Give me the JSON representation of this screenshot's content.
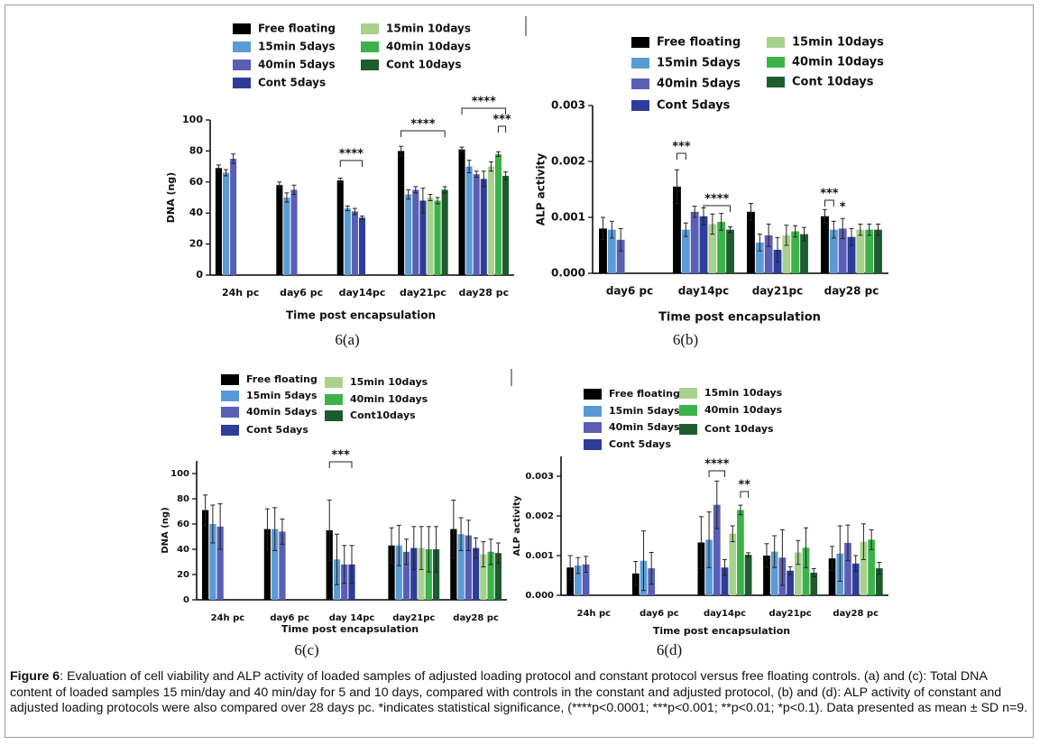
{
  "chart_data": [
    {
      "type": "bar",
      "label": "6(a)",
      "ylabel": "DNA (ng)",
      "xlabel": "Time post encapsulation",
      "categories": [
        "24h pc",
        "day6 pc",
        "day14pc",
        "day21pc",
        "day28 pc"
      ],
      "ylim": [
        0,
        100
      ],
      "yticks": [
        0,
        20,
        40,
        60,
        80,
        100
      ],
      "annotations": [
        "****",
        "****",
        "****",
        "***"
      ],
      "series": [
        {
          "name": "Free floating",
          "color": "#000000",
          "values": [
            69,
            58,
            61,
            80,
            81
          ],
          "errors": [
            2,
            2,
            1.5,
            3,
            1.5
          ]
        },
        {
          "name": "15min 5days",
          "color": "#5b9bd5",
          "values": [
            66,
            50,
            43,
            52,
            70
          ],
          "errors": [
            2,
            3,
            1.5,
            3,
            4
          ]
        },
        {
          "name": "40min 5days",
          "color": "#5a5fb5",
          "values": [
            75,
            55,
            41,
            55,
            65
          ],
          "errors": [
            3,
            3,
            2,
            2,
            2
          ]
        },
        {
          "name": "Cont 5days",
          "color": "#2e3d9a",
          "values": [
            null,
            null,
            37,
            48,
            62
          ],
          "errors": [
            null,
            null,
            1,
            8,
            5
          ]
        },
        {
          "name": "15min 10days",
          "color": "#a9d18e",
          "values": [
            null,
            null,
            null,
            50,
            70
          ],
          "errors": [
            null,
            null,
            null,
            2,
            3
          ]
        },
        {
          "name": "40min 10days",
          "color": "#3cb34a",
          "values": [
            null,
            null,
            null,
            48,
            78
          ],
          "errors": [
            null,
            null,
            null,
            2,
            1.5
          ]
        },
        {
          "name": "Cont 10days",
          "color": "#1e5c30",
          "values": [
            null,
            null,
            null,
            55,
            64
          ],
          "errors": [
            null,
            null,
            null,
            2,
            2.5
          ]
        }
      ]
    },
    {
      "type": "bar",
      "label": "6(b)",
      "ylabel": "ALP activity",
      "xlabel": "Time post encapsulation",
      "categories": [
        "day6 pc",
        "day14pc",
        "day21pc",
        "day28 pc"
      ],
      "ylim": [
        0,
        0.003
      ],
      "yticks": [
        {
          "value": 0,
          "label": "0.000"
        },
        {
          "value": 0.001,
          "label": "0.001"
        },
        {
          "value": 0.002,
          "label": "0.002"
        },
        {
          "value": 0.003,
          "label": "0.003"
        }
      ],
      "annotations": [
        "***",
        "****",
        "***",
        "*"
      ],
      "series": [
        {
          "name": "Free floating",
          "color": "#000000",
          "values": [
            0.0008,
            0.00155,
            0.0011,
            0.00102
          ],
          "errors": [
            0.0002,
            0.0003,
            0.00015,
            0.00012
          ]
        },
        {
          "name": "15min 5days",
          "color": "#5b9bd5",
          "values": [
            0.00078,
            0.00078,
            0.00055,
            0.00078
          ],
          "errors": [
            0.00015,
            0.00012,
            0.00015,
            0.00015
          ]
        },
        {
          "name": "40min 5days",
          "color": "#5a5fb5",
          "values": [
            0.0006,
            0.0011,
            0.00068,
            0.0008
          ],
          "errors": [
            0.0002,
            0.0001,
            0.0002,
            0.00018
          ]
        },
        {
          "name": "Cont 5days",
          "color": "#2e3d9a",
          "values": [
            null,
            0.00102,
            0.00042,
            0.00065
          ],
          "errors": [
            null,
            0.00015,
            0.00022,
            0.00015
          ]
        },
        {
          "name": "15min 10days",
          "color": "#a9d18e",
          "values": [
            null,
            0.00088,
            0.00068,
            0.00078
          ],
          "errors": [
            null,
            0.00018,
            0.00018,
            0.0001
          ]
        },
        {
          "name": "40min 10days",
          "color": "#3cb34a",
          "values": [
            null,
            0.00092,
            0.00075,
            0.00078
          ],
          "errors": [
            null,
            0.00015,
            0.0001,
            0.0001
          ]
        },
        {
          "name": "Cont 10days",
          "color": "#1e5c30",
          "values": [
            null,
            0.00078,
            0.0007,
            0.00078
          ],
          "errors": [
            null,
            5e-05,
            0.00012,
            0.0001
          ]
        }
      ]
    },
    {
      "type": "bar",
      "label": "6(c)",
      "ylabel": "DNA (ng)",
      "xlabel": "Time post encapsulation",
      "categories": [
        "24h pc",
        "day6 pc",
        "day 14pc",
        "day21pc",
        "day28 pc"
      ],
      "ylim": [
        0,
        110
      ],
      "yticks": [
        0,
        20,
        40,
        60,
        80,
        100
      ],
      "annotations": [
        "***"
      ],
      "series": [
        {
          "name": "Free floating",
          "color": "#000000",
          "values": [
            71,
            56,
            55,
            43,
            56
          ],
          "errors": [
            12,
            16,
            24,
            14,
            23
          ]
        },
        {
          "name": "15min 5days",
          "color": "#5b9bd5",
          "values": [
            60,
            56,
            32,
            43,
            52
          ],
          "errors": [
            15,
            17,
            20,
            16,
            13
          ]
        },
        {
          "name": "40min 5days",
          "color": "#5a5fb5",
          "values": [
            58,
            54,
            28,
            38,
            51
          ],
          "errors": [
            18,
            10,
            15,
            10,
            12
          ]
        },
        {
          "name": "Cont 5days",
          "color": "#2e3d9a",
          "values": [
            null,
            null,
            28,
            41,
            41
          ],
          "errors": [
            null,
            null,
            15,
            17,
            8
          ]
        },
        {
          "name": "15min 10days",
          "color": "#a9d18e",
          "values": [
            null,
            null,
            null,
            41,
            36
          ],
          "errors": [
            null,
            null,
            null,
            17,
            10
          ]
        },
        {
          "name": "40min 10days",
          "color": "#3cb34a",
          "values": [
            null,
            null,
            null,
            40,
            38
          ],
          "errors": [
            null,
            null,
            null,
            18,
            10
          ]
        },
        {
          "name": "Cont10days",
          "color": "#1e5c30",
          "values": [
            null,
            null,
            null,
            40,
            37
          ],
          "errors": [
            null,
            null,
            null,
            18,
            8
          ]
        }
      ]
    },
    {
      "type": "bar",
      "label": "6(d)",
      "ylabel": "ALP activity",
      "xlabel": "Time post encapsulation",
      "categories": [
        "24h pc",
        "day6 pc",
        "day14pc",
        "day21pc",
        "day28 pc"
      ],
      "ylim": [
        0,
        0.0035
      ],
      "yticks": [
        {
          "value": 0,
          "label": "0.000"
        },
        {
          "value": 0.001,
          "label": "0.001"
        },
        {
          "value": 0.002,
          "label": "0.002"
        },
        {
          "value": 0.003,
          "label": "0.003"
        }
      ],
      "annotations": [
        "****",
        "**"
      ],
      "series": [
        {
          "name": "Free floating",
          "color": "#000000",
          "values": [
            0.0007,
            0.00055,
            0.00133,
            0.001,
            0.00093
          ],
          "errors": [
            0.0003,
            0.0003,
            0.00065,
            0.0003,
            0.0003
          ]
        },
        {
          "name": "15min 5days",
          "color": "#5b9bd5",
          "values": [
            0.00075,
            0.00087,
            0.0014,
            0.0011,
            0.00105
          ],
          "errors": [
            0.0002,
            0.00075,
            0.0007,
            0.0004,
            0.0007
          ]
        },
        {
          "name": "40min 5days",
          "color": "#5a5fb5",
          "values": [
            0.00078,
            0.00068,
            0.00228,
            0.00095,
            0.00132
          ],
          "errors": [
            0.0002,
            0.0004,
            0.0006,
            0.0007,
            0.00045
          ]
        },
        {
          "name": "Cont 5days",
          "color": "#2e3d9a",
          "values": [
            null,
            null,
            0.0007,
            0.00062,
            0.0008
          ],
          "errors": [
            null,
            null,
            0.0002,
            0.0001,
            0.0002
          ]
        },
        {
          "name": "15min 10days",
          "color": "#a9d18e",
          "values": [
            null,
            null,
            0.00155,
            0.00108,
            0.00135
          ],
          "errors": [
            null,
            null,
            0.0002,
            0.0003,
            0.00045
          ]
        },
        {
          "name": "40min 10days",
          "color": "#3cb34a",
          "values": [
            null,
            null,
            0.00215,
            0.0012,
            0.0014
          ],
          "errors": [
            null,
            null,
            0.00012,
            0.0005,
            0.00025
          ]
        },
        {
          "name": "Cont 10days",
          "color": "#1e5c30",
          "values": [
            null,
            null,
            0.00102,
            0.00057,
            0.00068
          ],
          "errors": [
            null,
            null,
            5e-05,
            0.0001,
            0.00015
          ]
        }
      ]
    }
  ],
  "caption": {
    "label": "Figure 6",
    "text": ": Evaluation of cell viability and ALP activity of loaded samples of adjusted loading protocol and constant protocol versus free floating controls. (a) and (c): Total DNA content of loaded samples 15 min/day and 40 min/day for 5 and 10 days, compared with controls in the constant and adjusted protocol, (b) and (d): ALP activity of constant and adjusted loading protocols were also compared over 28 days pc. *indicates statistical significance, (****p<0.0001; ***p<0.001; **p<0.01; *p<0.1). Data presented as mean ± SD n=9."
  }
}
